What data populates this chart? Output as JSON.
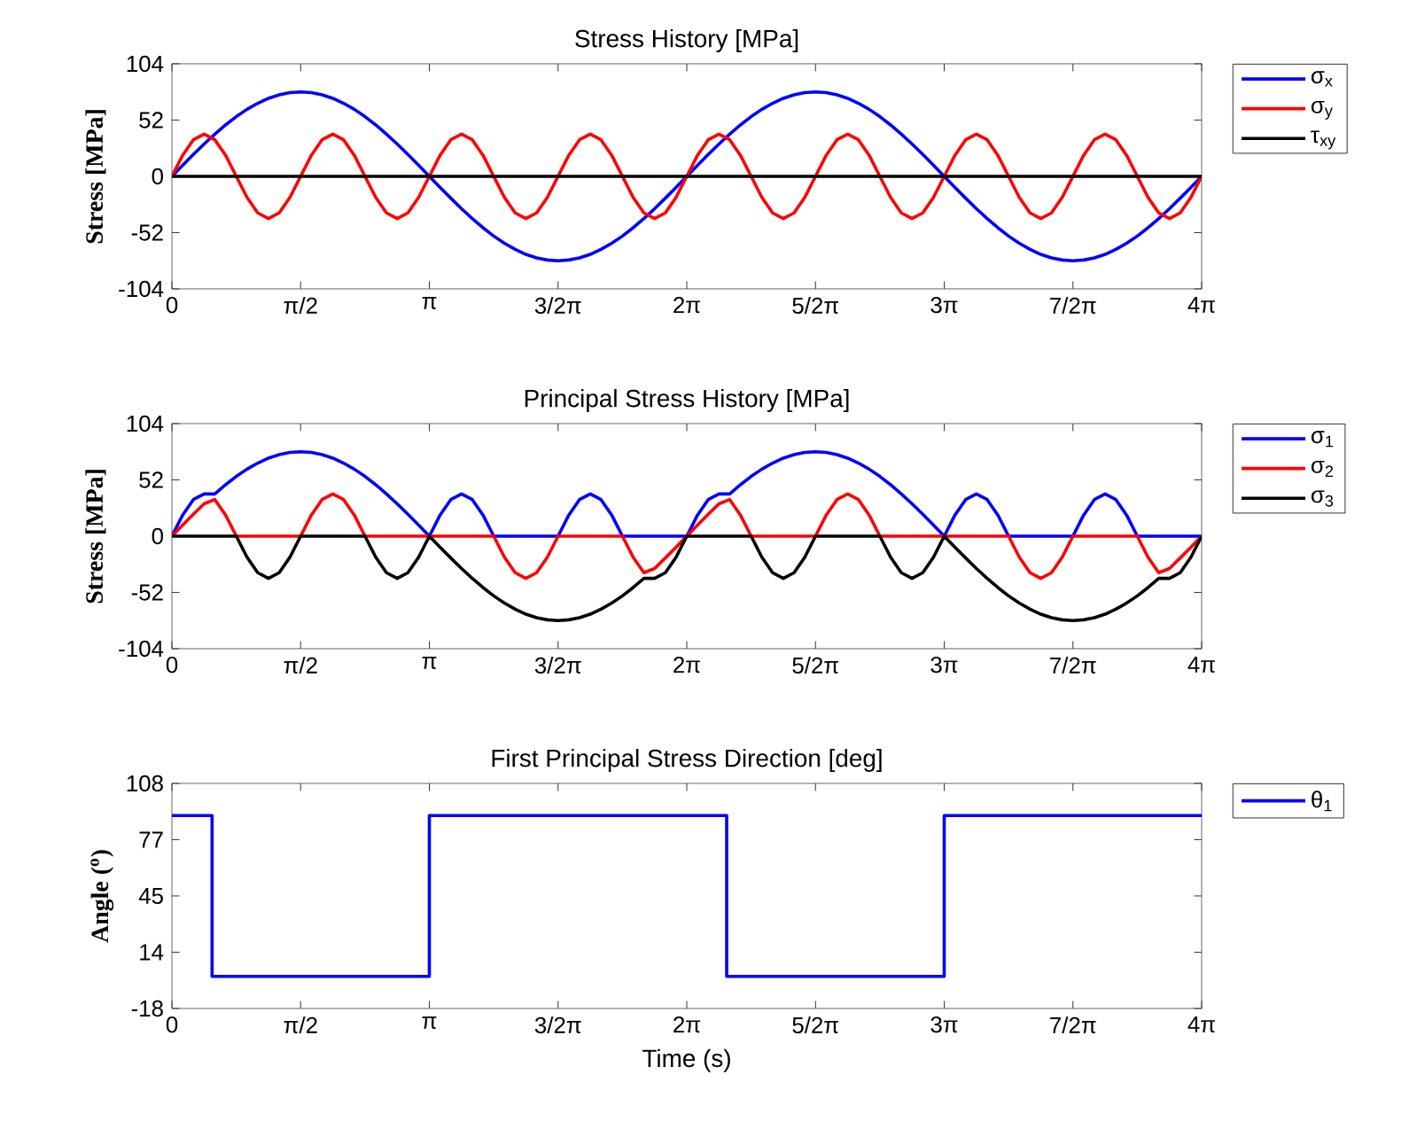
{
  "chart_data": [
    {
      "type": "line",
      "title": "Stress History [MPa]",
      "ylabel": "Stress [MPa]",
      "legend": "right",
      "xlim": [
        0,
        12.5664
      ],
      "xticks": [
        0,
        {
          "value": 1.5708,
          "label": "π/2"
        },
        {
          "value": 3.1416,
          "label": "π"
        },
        {
          "value": 4.7124,
          "label": "3/2π"
        },
        {
          "value": 6.2832,
          "label": "2π"
        },
        {
          "value": 7.854,
          "label": "5/2π"
        },
        {
          "value": 9.4248,
          "label": "3π"
        },
        {
          "value": 10.9956,
          "label": "7/2π"
        },
        {
          "value": 12.5664,
          "label": "4π"
        }
      ],
      "ylim": [
        -104,
        104
      ],
      "yticks": [
        -104,
        -52,
        0,
        52,
        104
      ],
      "x": [
        0,
        0.1309,
        0.2618,
        0.3927,
        0.5236,
        0.6545,
        0.7854,
        0.9163,
        1.0472,
        1.1781,
        1.309,
        1.4399,
        1.5708,
        1.7017,
        1.8326,
        1.9635,
        2.0944,
        2.2253,
        2.3562,
        2.4871,
        2.618,
        2.7489,
        2.8798,
        3.0107,
        3.1416,
        3.2725,
        3.4034,
        3.5343,
        3.6652,
        3.7961,
        3.927,
        4.0579,
        4.1888,
        4.3197,
        4.4506,
        4.5815,
        4.7124,
        4.8433,
        4.9742,
        5.1051,
        5.236,
        5.3669,
        5.4978,
        5.6287,
        5.7596,
        5.8905,
        6.0214,
        6.1523,
        6.2832,
        6.4141,
        6.545,
        6.6759,
        6.8068,
        6.9377,
        7.0686,
        7.1995,
        7.3304,
        7.4613,
        7.5922,
        7.7231,
        7.854,
        7.9849,
        8.1158,
        8.2467,
        8.3776,
        8.5085,
        8.6394,
        8.7703,
        8.9012,
        9.0321,
        9.163,
        9.2939,
        9.4248,
        9.5557,
        9.6866,
        9.8175,
        9.9484,
        10.0793,
        10.2102,
        10.3411,
        10.472,
        10.6029,
        10.7338,
        10.8647,
        10.9956,
        11.1265,
        11.2574,
        11.3883,
        11.5192,
        11.6501,
        11.781,
        11.9119,
        12.0428,
        12.1737,
        12.3046,
        12.4355,
        12.5664
      ],
      "series": [
        {
          "name": "σ$_{x}$",
          "color": "#0000ff",
          "values": [
            0,
            10.2,
            20.2,
            29.9,
            39,
            47.5,
            55.2,
            61.9,
            67.5,
            72.1,
            75.3,
            77.3,
            78,
            77.3,
            75.3,
            72.1,
            67.5,
            61.9,
            55.2,
            47.5,
            39,
            29.9,
            20.2,
            10.2,
            0,
            -10.2,
            -20.2,
            -29.9,
            -39,
            -47.5,
            -55.2,
            -61.9,
            -67.5,
            -72.1,
            -75.3,
            -77.3,
            -78,
            -77.3,
            -75.3,
            -72.1,
            -67.5,
            -61.9,
            -55.2,
            -47.5,
            -39,
            -29.9,
            -20.2,
            -10.2,
            0,
            10.2,
            20.2,
            29.9,
            39,
            47.5,
            55.2,
            61.9,
            67.5,
            72.1,
            75.3,
            77.3,
            78,
            77.3,
            75.3,
            72.1,
            67.5,
            61.9,
            55.2,
            47.5,
            39,
            29.9,
            20.2,
            10.2,
            0,
            -10.2,
            -20.2,
            -29.9,
            -39,
            -47.5,
            -55.2,
            -61.9,
            -67.5,
            -72.1,
            -75.3,
            -77.3,
            -78,
            -77.3,
            -75.3,
            -72.1,
            -67.5,
            -61.9,
            -55.2,
            -47.5,
            -39,
            -29.9,
            -20.2,
            -10.2,
            0
          ]
        },
        {
          "name": "σ$_{y}$",
          "color": "#ff0000",
          "values": [
            0,
            19.5,
            33.8,
            39,
            33.8,
            19.5,
            0,
            -19.5,
            -33.8,
            -39,
            -33.8,
            -19.5,
            0,
            19.5,
            33.8,
            39,
            33.8,
            19.5,
            0,
            -19.5,
            -33.8,
            -39,
            -33.8,
            -19.5,
            0,
            19.5,
            33.8,
            39,
            33.8,
            19.5,
            0,
            -19.5,
            -33.8,
            -39,
            -33.8,
            -19.5,
            0,
            19.5,
            33.8,
            39,
            33.8,
            19.5,
            0,
            -19.5,
            -33.8,
            -39,
            -33.8,
            -19.5,
            0,
            19.5,
            33.8,
            39,
            33.8,
            19.5,
            0,
            -19.5,
            -33.8,
            -39,
            -33.8,
            -19.5,
            0,
            19.5,
            33.8,
            39,
            33.8,
            19.5,
            0,
            -19.5,
            -33.8,
            -39,
            -33.8,
            -19.5,
            0,
            19.5,
            33.8,
            39,
            33.8,
            19.5,
            0,
            -19.5,
            -33.8,
            -39,
            -33.8,
            -19.5,
            0,
            19.5,
            33.8,
            39,
            33.8,
            19.5,
            0,
            -19.5,
            -33.8,
            -39,
            -33.8,
            -19.5,
            0
          ]
        },
        {
          "name": "τ$_{xy}$",
          "color": "#000000",
          "x": [
            0,
            12.5664
          ],
          "values": [
            0,
            0
          ]
        }
      ]
    },
    {
      "type": "line",
      "title": "Principal Stress History [MPa]",
      "ylabel": "Stress [MPa]",
      "legend": "right",
      "xlim": [
        0,
        12.5664
      ],
      "xticks": [
        0,
        {
          "value": 1.5708,
          "label": "π/2"
        },
        {
          "value": 3.1416,
          "label": "π"
        },
        {
          "value": 4.7124,
          "label": "3/2π"
        },
        {
          "value": 6.2832,
          "label": "2π"
        },
        {
          "value": 7.854,
          "label": "5/2π"
        },
        {
          "value": 9.4248,
          "label": "3π"
        },
        {
          "value": 10.9956,
          "label": "7/2π"
        },
        {
          "value": 12.5664,
          "label": "4π"
        }
      ],
      "ylim": [
        -104,
        104
      ],
      "yticks": [
        -104,
        -52,
        0,
        52,
        104
      ],
      "x": [
        0,
        0.1309,
        0.2618,
        0.3927,
        0.5236,
        0.6545,
        0.7854,
        0.9163,
        1.0472,
        1.1781,
        1.309,
        1.4399,
        1.5708,
        1.7017,
        1.8326,
        1.9635,
        2.0944,
        2.2253,
        2.3562,
        2.4871,
        2.618,
        2.7489,
        2.8798,
        3.0107,
        3.1416,
        3.2725,
        3.4034,
        3.5343,
        3.6652,
        3.7961,
        3.927,
        4.0579,
        4.1888,
        4.3197,
        4.4506,
        4.5815,
        4.7124,
        4.8433,
        4.9742,
        5.1051,
        5.236,
        5.3669,
        5.4978,
        5.6287,
        5.7596,
        5.8905,
        6.0214,
        6.1523,
        6.2832,
        6.4141,
        6.545,
        6.6759,
        6.8068,
        6.9377,
        7.0686,
        7.1995,
        7.3304,
        7.4613,
        7.5922,
        7.7231,
        7.854,
        7.9849,
        8.1158,
        8.2467,
        8.3776,
        8.5085,
        8.6394,
        8.7703,
        8.9012,
        9.0321,
        9.163,
        9.2939,
        9.4248,
        9.5557,
        9.6866,
        9.8175,
        9.9484,
        10.0793,
        10.2102,
        10.3411,
        10.472,
        10.6029,
        10.7338,
        10.8647,
        10.9956,
        11.1265,
        11.2574,
        11.3883,
        11.5192,
        11.6501,
        11.781,
        11.9119,
        12.0428,
        12.1737,
        12.3046,
        12.4355,
        12.5664
      ],
      "series": [
        {
          "name": "σ$_{1}$",
          "color": "#0000ff",
          "values": [
            0,
            19.5,
            33.8,
            39,
            39,
            47.5,
            55.2,
            61.9,
            67.5,
            72.1,
            75.3,
            77.3,
            78,
            77.3,
            75.3,
            72.1,
            67.5,
            61.9,
            55.2,
            47.5,
            39,
            29.9,
            20.2,
            10.2,
            0,
            19.5,
            33.8,
            39,
            33.8,
            19.5,
            0,
            0,
            0,
            0,
            0,
            0,
            0,
            19.5,
            33.8,
            39,
            33.8,
            19.5,
            0,
            0,
            0,
            0,
            0,
            0,
            0,
            19.5,
            33.8,
            39,
            39,
            47.5,
            55.2,
            61.9,
            67.5,
            72.1,
            75.3,
            77.3,
            78,
            77.3,
            75.3,
            72.1,
            67.5,
            61.9,
            55.2,
            47.5,
            39,
            29.9,
            20.2,
            10.2,
            0,
            19.5,
            33.8,
            39,
            33.8,
            19.5,
            0,
            0,
            0,
            0,
            0,
            0,
            0,
            19.5,
            33.8,
            39,
            33.8,
            19.5,
            0,
            0,
            0,
            0,
            0,
            0,
            0
          ]
        },
        {
          "name": "σ$_{2}$",
          "color": "#ff0000",
          "values": [
            0,
            10.2,
            20.2,
            29.9,
            33.8,
            19.5,
            0,
            0,
            0,
            0,
            0,
            0,
            0,
            19.5,
            33.8,
            39,
            33.8,
            19.5,
            0,
            0,
            0,
            0,
            0,
            0,
            0,
            0,
            0,
            0,
            0,
            0,
            0,
            -19.5,
            -33.8,
            -39,
            -33.8,
            -19.5,
            0,
            0,
            0,
            0,
            0,
            0,
            0,
            -19.5,
            -33.8,
            -29.9,
            -20.2,
            -10.2,
            0,
            10.2,
            20.2,
            29.9,
            33.8,
            19.5,
            0,
            0,
            0,
            0,
            0,
            0,
            0,
            19.5,
            33.8,
            39,
            33.8,
            19.5,
            0,
            0,
            0,
            0,
            0,
            0,
            0,
            0,
            0,
            0,
            0,
            0,
            0,
            -19.5,
            -33.8,
            -39,
            -33.8,
            -19.5,
            0,
            0,
            0,
            0,
            0,
            0,
            0,
            -19.5,
            -33.8,
            -29.9,
            -20.2,
            -10.2,
            0
          ]
        },
        {
          "name": "σ$_{3}$",
          "color": "#000000",
          "values": [
            0,
            0,
            0,
            0,
            0,
            0,
            0,
            -19.5,
            -33.8,
            -39,
            -33.8,
            -19.5,
            0,
            0,
            0,
            0,
            0,
            0,
            0,
            -19.5,
            -33.8,
            -39,
            -33.8,
            -19.5,
            0,
            -10.2,
            -20.2,
            -29.9,
            -39,
            -47.5,
            -55.2,
            -61.9,
            -67.5,
            -72.1,
            -75.3,
            -77.3,
            -78,
            -77.3,
            -75.3,
            -72.1,
            -67.5,
            -61.9,
            -55.2,
            -47.5,
            -39,
            -39,
            -33.8,
            -19.5,
            0,
            0,
            0,
            0,
            0,
            0,
            0,
            -19.5,
            -33.8,
            -39,
            -33.8,
            -19.5,
            0,
            0,
            0,
            0,
            0,
            0,
            0,
            -19.5,
            -33.8,
            -39,
            -33.8,
            -19.5,
            0,
            -10.2,
            -20.2,
            -29.9,
            -39,
            -47.5,
            -55.2,
            -61.9,
            -67.5,
            -72.1,
            -75.3,
            -77.3,
            -78,
            -77.3,
            -75.3,
            -72.1,
            -67.5,
            -61.9,
            -55.2,
            -47.5,
            -39,
            -39,
            -33.8,
            -19.5,
            0
          ]
        }
      ]
    },
    {
      "type": "line",
      "title": "First Principal Stress Direction [deg]",
      "xlabel": "Time (s)",
      "ylabel": "Angle ($^{o}$)",
      "legend": "right",
      "xlim": [
        0,
        12.5664
      ],
      "xticks": [
        0,
        {
          "value": 1.5708,
          "label": "π/2"
        },
        {
          "value": 3.1416,
          "label": "π"
        },
        {
          "value": 4.7124,
          "label": "3/2π"
        },
        {
          "value": 6.2832,
          "label": "2π"
        },
        {
          "value": 7.854,
          "label": "5/2π"
        },
        {
          "value": 9.4248,
          "label": "3π"
        },
        {
          "value": 10.9956,
          "label": "7/2π"
        },
        {
          "value": 12.5664,
          "label": "4π"
        }
      ],
      "ylim": [
        -18,
        108
      ],
      "yticks": [
        -18,
        {
          "value": 13.5,
          "label": "14"
        },
        45,
        {
          "value": 76.5,
          "label": "77"
        },
        108
      ],
      "x": [
        0,
        0.49,
        0.49,
        3.1416,
        3.1416,
        6.77,
        6.77,
        9.4248,
        9.4248,
        12.5664
      ],
      "series": [
        {
          "name": "θ$_{1}$",
          "color": "#0000ff",
          "values": [
            90,
            90,
            0,
            0,
            90,
            90,
            0,
            0,
            90,
            90
          ]
        }
      ]
    }
  ]
}
